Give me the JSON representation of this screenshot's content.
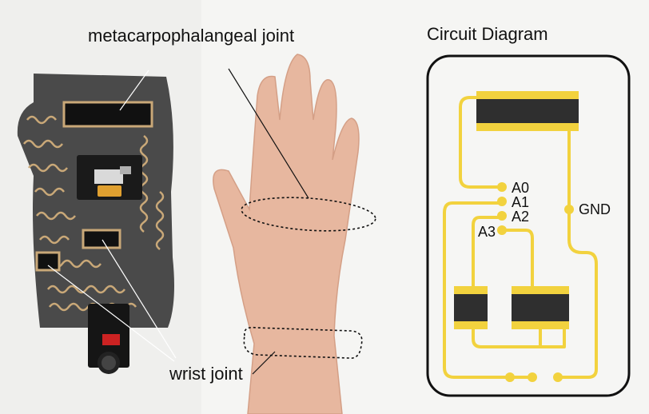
{
  "labels": {
    "mcp_joint": "metacarpophalangeal joint",
    "wrist_joint": "wrist joint",
    "circuit_title": "Circuit Diagram"
  },
  "circuit": {
    "pins": [
      "A0",
      "A1",
      "A2",
      "A3"
    ],
    "ground": "GND"
  },
  "colors": {
    "trace": "#f2d23e",
    "sensor": "#2f2f2f",
    "board_bg": "#f6f6f4",
    "glove": "#4a4a4a",
    "skin": "#e8b8a0"
  }
}
